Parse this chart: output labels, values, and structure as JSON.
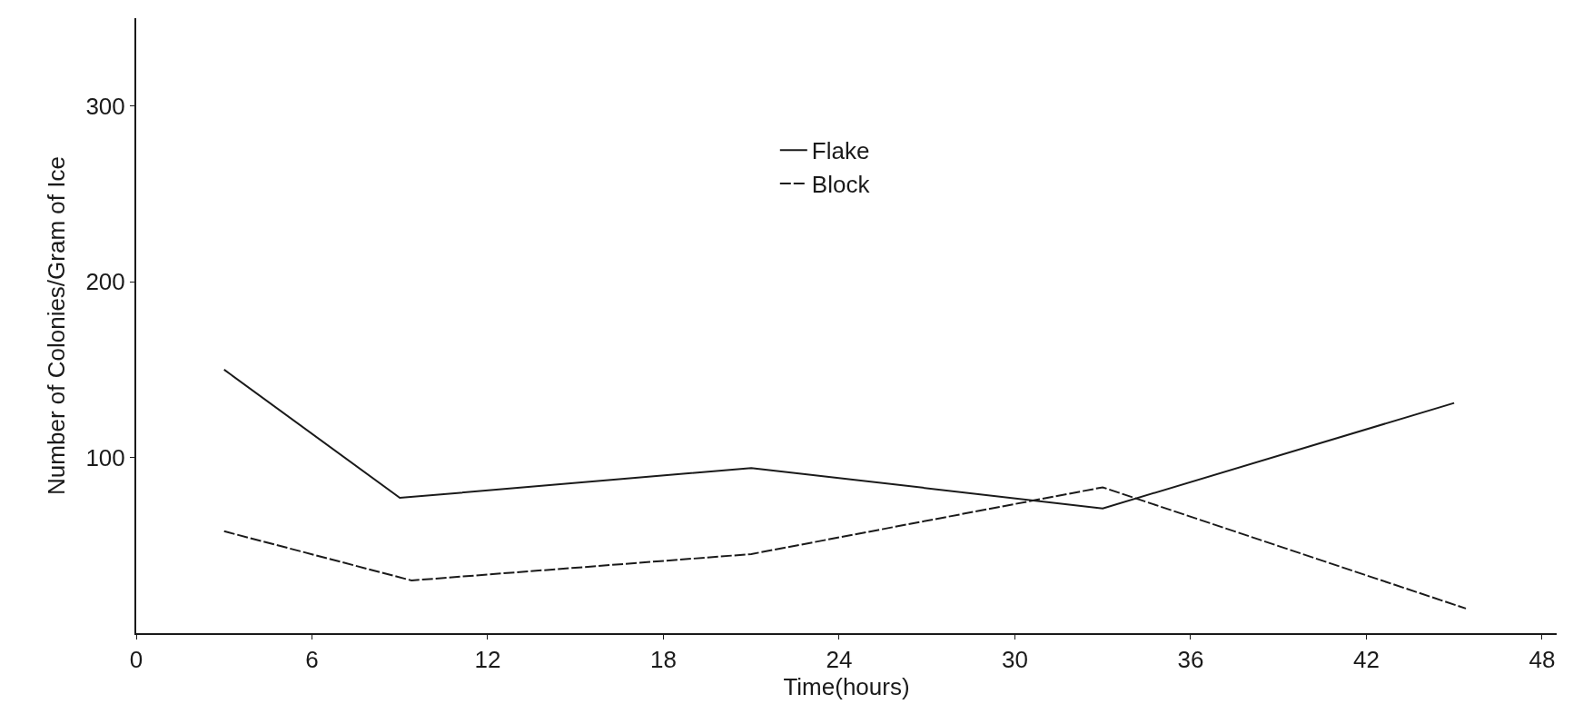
{
  "chart_data": {
    "type": "line",
    "xlabel": "Time(hours)",
    "ylabel": "Number of Colonies/Gram of Ice",
    "series": [
      {
        "name": "Flake",
        "color": "#1a1a1a",
        "line_style": "solid",
        "x": [
          3,
          9,
          21,
          33,
          45
        ],
        "values": [
          150,
          77,
          94,
          71,
          131
        ]
      },
      {
        "name": "Block",
        "color": "#1a1a1a",
        "line_style": "dashed",
        "x": [
          3,
          9.4,
          21,
          33,
          45.4
        ],
        "values": [
          58,
          30,
          45,
          83,
          14
        ]
      }
    ],
    "xlim": [
      0,
      48.5
    ],
    "xticks": [
      0,
      6,
      12,
      18,
      24,
      30,
      36,
      42,
      48
    ],
    "ylim": [
      0,
      350
    ],
    "yticks": [
      100,
      200,
      300
    ],
    "legend": "top",
    "marker": "none"
  }
}
